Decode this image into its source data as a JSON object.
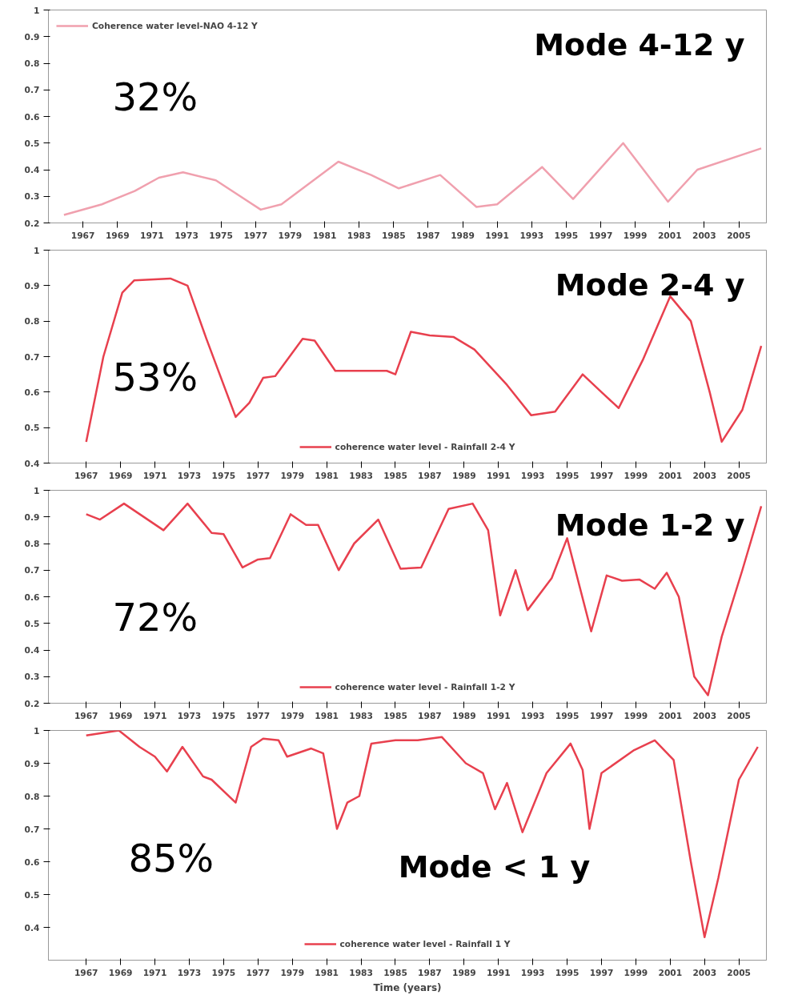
{
  "chart_data": [
    {
      "type": "line",
      "xlim": [
        1965,
        2006.6
      ],
      "ylim": [
        0.2,
        1
      ],
      "xticks": [
        1967,
        1969,
        1971,
        1973,
        1975,
        1977,
        1979,
        1981,
        1983,
        1985,
        1987,
        1989,
        1991,
        1993,
        1995,
        1997,
        1999,
        2001,
        2003,
        2005
      ],
      "yticks": [
        0.2,
        0.3,
        0.4,
        0.5,
        0.6,
        0.7,
        0.8,
        0.9,
        1
      ],
      "grid": false,
      "legend": "top left",
      "annotations": [
        "Mode 4-12 y",
        "32%"
      ],
      "series": [
        {
          "name": "Coherence water level-NAO 4-12 Y",
          "color": "#f0a0ae",
          "x": [
            1965.9,
            1968.1,
            1970.0,
            1971.4,
            1972.8,
            1974.7,
            1977.3,
            1978.5,
            1981.8,
            1983.7,
            1985.3,
            1987.7,
            1989.8,
            1991.0,
            1993.6,
            1995.4,
            1998.3,
            2000.9,
            2002.6,
            2006.3
          ],
          "values": [
            0.23,
            0.27,
            0.32,
            0.37,
            0.39,
            0.36,
            0.25,
            0.27,
            0.43,
            0.38,
            0.33,
            0.38,
            0.26,
            0.27,
            0.41,
            0.29,
            0.5,
            0.28,
            0.4,
            0.48
          ]
        }
      ]
    },
    {
      "type": "line",
      "xlim": [
        1964.8,
        2006.6
      ],
      "ylim": [
        0.4,
        1
      ],
      "xticks": [
        1967,
        1969,
        1971,
        1973,
        1975,
        1977,
        1979,
        1981,
        1983,
        1985,
        1987,
        1989,
        1991,
        1993,
        1995,
        1997,
        1999,
        2001,
        2003,
        2005
      ],
      "yticks": [
        0.4,
        0.5,
        0.6,
        0.7,
        0.8,
        0.9,
        1
      ],
      "grid": false,
      "legend": "bottom",
      "annotations": [
        "Mode 2-4 y",
        "53%"
      ],
      "series": [
        {
          "name": "coherence water level - Rainfall 2-4 Y",
          "color": "#e8404e",
          "x": [
            1967.0,
            1968.0,
            1969.1,
            1969.8,
            1971.9,
            1972.9,
            1974.0,
            1975.7,
            1976.5,
            1977.3,
            1978.0,
            1979.6,
            1980.3,
            1981.5,
            1984.5,
            1985.0,
            1985.9,
            1987.0,
            1988.4,
            1989.6,
            1991.5,
            1992.9,
            1994.3,
            1995.9,
            1997.0,
            1998.0,
            1999.4,
            2001.0,
            2002.2,
            2003.3,
            2004.0,
            2005.2,
            2006.3
          ],
          "values": [
            0.46,
            0.7,
            0.88,
            0.915,
            0.92,
            0.9,
            0.75,
            0.53,
            0.57,
            0.64,
            0.645,
            0.75,
            0.745,
            0.66,
            0.66,
            0.65,
            0.77,
            0.76,
            0.755,
            0.72,
            0.62,
            0.535,
            0.545,
            0.65,
            0.6,
            0.555,
            0.69,
            0.87,
            0.8,
            0.6,
            0.46,
            0.55,
            0.73
          ]
        }
      ]
    },
    {
      "type": "line",
      "xlim": [
        1964.8,
        2006.6
      ],
      "ylim": [
        0.2,
        1
      ],
      "xticks": [
        1967,
        1969,
        1971,
        1973,
        1975,
        1977,
        1979,
        1981,
        1983,
        1985,
        1987,
        1989,
        1991,
        1993,
        1995,
        1997,
        1999,
        2001,
        2003,
        2005
      ],
      "yticks": [
        0.2,
        0.3,
        0.4,
        0.5,
        0.6,
        0.7,
        0.8,
        0.9,
        1
      ],
      "grid": false,
      "legend": "bottom",
      "annotations": [
        "Mode 1-2 y",
        "72%"
      ],
      "series": [
        {
          "name": "coherence water level - Rainfall 1-2 Y",
          "color": "#e8404e",
          "x": [
            1967.0,
            1967.8,
            1969.2,
            1971.5,
            1972.9,
            1974.3,
            1975.0,
            1976.1,
            1977.0,
            1977.7,
            1978.9,
            1979.8,
            1980.5,
            1981.7,
            1982.6,
            1984.0,
            1985.3,
            1986.5,
            1988.1,
            1989.5,
            1990.4,
            1991.1,
            1992.0,
            1992.7,
            1994.1,
            1995.0,
            1996.4,
            1997.3,
            1998.2,
            1999.2,
            2000.1,
            2000.8,
            2001.5,
            2002.4,
            2003.2,
            2004.0,
            2005.2,
            2006.3
          ],
          "values": [
            0.91,
            0.89,
            0.95,
            0.85,
            0.95,
            0.84,
            0.835,
            0.71,
            0.74,
            0.745,
            0.91,
            0.87,
            0.87,
            0.7,
            0.8,
            0.89,
            0.705,
            0.71,
            0.93,
            0.95,
            0.85,
            0.53,
            0.7,
            0.55,
            0.67,
            0.82,
            0.47,
            0.68,
            0.66,
            0.665,
            0.63,
            0.69,
            0.6,
            0.3,
            0.23,
            0.45,
            0.7,
            0.94
          ]
        }
      ]
    },
    {
      "type": "line",
      "xlim": [
        1964.8,
        2006.6
      ],
      "ylim": [
        0.3,
        1
      ],
      "xlabel": "Time (years)",
      "xticks": [
        1967,
        1969,
        1971,
        1973,
        1975,
        1977,
        1979,
        1981,
        1983,
        1985,
        1987,
        1989,
        1991,
        1993,
        1995,
        1997,
        1999,
        2001,
        2003,
        2005
      ],
      "yticks": [
        0.4,
        0.5,
        0.6,
        0.7,
        0.8,
        0.9,
        1
      ],
      "grid": false,
      "legend": "bottom",
      "annotations": [
        "Mode  < 1 y",
        "85%"
      ],
      "series": [
        {
          "name": "coherence water level - Rainfall 1 Y",
          "color": "#e8404e",
          "x": [
            1967.0,
            1968.9,
            1970.1,
            1971.0,
            1971.7,
            1972.6,
            1973.8,
            1974.3,
            1975.7,
            1976.6,
            1977.3,
            1978.2,
            1978.7,
            1980.1,
            1980.8,
            1981.6,
            1982.2,
            1982.9,
            1983.6,
            1985.0,
            1986.3,
            1987.7,
            1989.1,
            1990.1,
            1990.8,
            1991.5,
            1992.4,
            1993.8,
            1995.2,
            1995.9,
            1996.3,
            1997.0,
            1998.9,
            2000.1,
            2001.2,
            2002.2,
            2003.0,
            2003.8,
            2005.0,
            2006.1
          ],
          "values": [
            0.985,
            1.0,
            0.95,
            0.92,
            0.875,
            0.95,
            0.86,
            0.85,
            0.78,
            0.95,
            0.975,
            0.97,
            0.92,
            0.945,
            0.93,
            0.7,
            0.78,
            0.8,
            0.96,
            0.97,
            0.97,
            0.98,
            0.9,
            0.87,
            0.76,
            0.84,
            0.69,
            0.87,
            0.96,
            0.88,
            0.7,
            0.87,
            0.94,
            0.97,
            0.91,
            0.6,
            0.37,
            0.55,
            0.85,
            0.95
          ]
        }
      ]
    }
  ]
}
